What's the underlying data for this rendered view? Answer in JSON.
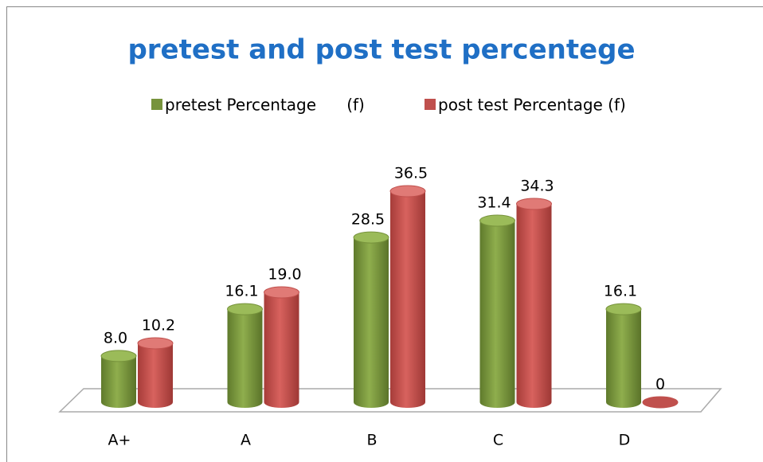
{
  "chart_data": {
    "type": "bar3d",
    "title": "pretest and post test percentege",
    "categories": [
      "A+",
      "A",
      "B",
      "C",
      "D"
    ],
    "series": [
      {
        "name": "pretest Percentage      (f)",
        "color": "#77933c",
        "values": [
          8.0,
          16.1,
          28.5,
          31.4,
          16.1
        ],
        "value_labels": [
          "8.0",
          "16.1",
          "28.5",
          "31.4",
          "16.1"
        ]
      },
      {
        "name": "post test Percentage (f)",
        "color": "#c0504d",
        "values": [
          10.2,
          19.0,
          36.5,
          34.3,
          0
        ],
        "value_labels": [
          "10.2",
          "19.0",
          "36.5",
          "34.3",
          "0"
        ]
      }
    ],
    "legend": "top"
  }
}
